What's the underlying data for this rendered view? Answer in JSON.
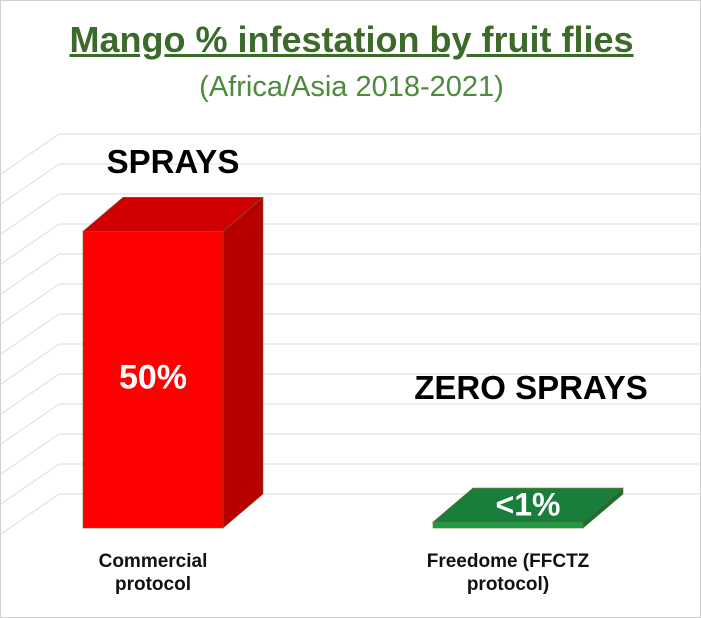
{
  "chart_data": {
    "type": "bar3d",
    "title": "Mango % infestation by fruit flies",
    "subtitle": "(Africa/Asia  2018-2021)",
    "categories": [
      "Commercial protocol",
      "Freedome (FFCTZ protocol)"
    ],
    "values": [
      50,
      1
    ],
    "value_labels": [
      "50%",
      "<1%"
    ],
    "colors": [
      "#ff0000",
      "#1f9a48"
    ],
    "annotations": [
      "SPRAYS",
      "ZERO SPRAYS"
    ],
    "ylim": [
      0,
      60
    ],
    "grid": true
  }
}
